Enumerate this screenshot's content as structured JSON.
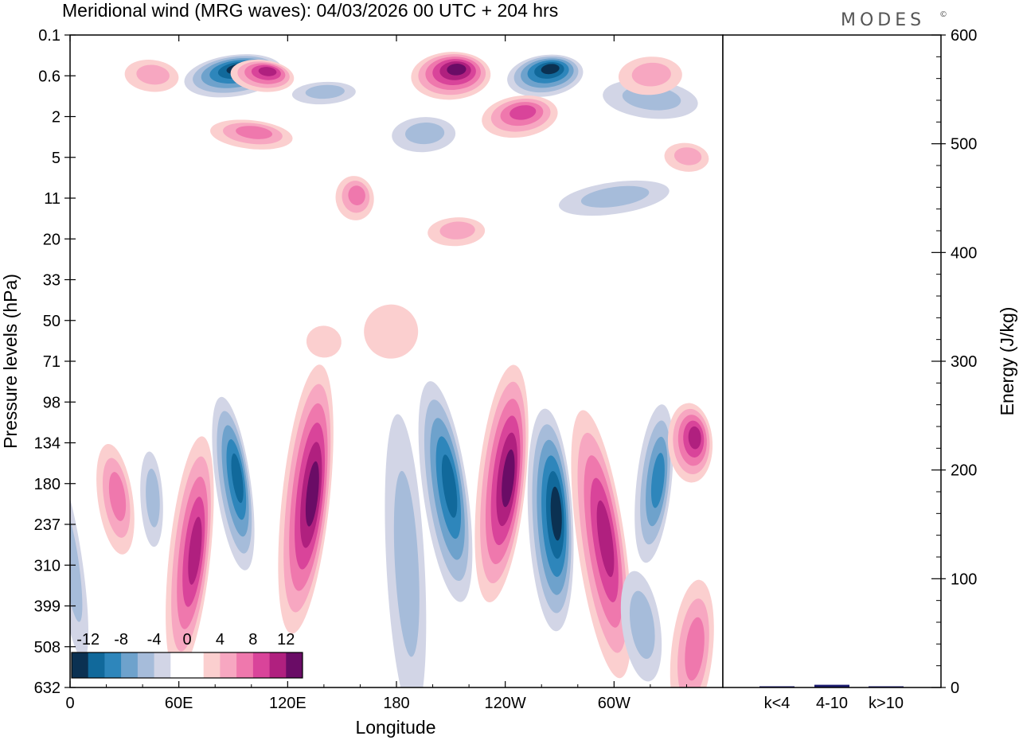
{
  "title": "Meridional wind (MRG waves):  04/03/2026  00 UTC  + 204 hrs",
  "brand": "MODES",
  "brand_mark": "©",
  "colors": {
    "neg": [
      "#0b3152",
      "#11699b",
      "#2e86bb",
      "#6ea2cc",
      "#a6bcda",
      "#d2d5e6"
    ],
    "pos": [
      "#fbcfcf",
      "#f7a7c1",
      "#ef78ad",
      "#d9449a",
      "#b0207f",
      "#6a0c66"
    ],
    "zero": "#ffffff",
    "bar": "#1a1a6e"
  },
  "chart_data": [
    {
      "type": "heatmap",
      "subtype": "filled-contour longitude-pressure cross section",
      "variable": "Meridional wind (MRG waves)",
      "xlabel": "Longitude",
      "ylabel": "Pressure levels (hPa)",
      "x_ticks": [
        "0",
        "60E",
        "120E",
        "180",
        "120W",
        "60W"
      ],
      "x_tick_degrees": [
        0,
        60,
        120,
        180,
        240,
        300
      ],
      "xlim": [
        0,
        360
      ],
      "y_levels": [
        "0.1",
        "0.6",
        "2",
        "5",
        "11",
        "20",
        "33",
        "50",
        "71",
        "98",
        "134",
        "180",
        "237",
        "310",
        "399",
        "508",
        "632"
      ],
      "levels": [
        -14,
        -12,
        -10,
        -8,
        -6,
        -4,
        -2,
        2,
        4,
        6,
        8,
        10,
        12,
        14
      ],
      "colorbar_labels": [
        "-12",
        "-8",
        "-4",
        "0",
        "4",
        "8",
        "12"
      ],
      "features": [
        {
          "lon": 90,
          "level": 0.6,
          "value": -13
        },
        {
          "lon": 106,
          "level": 0.6,
          "value": 10
        },
        {
          "lon": 210,
          "level": 0.6,
          "value": 14
        },
        {
          "lon": 262,
          "level": 0.6,
          "value": -12
        },
        {
          "lon": 45,
          "level": 0.6,
          "value": 5
        },
        {
          "lon": 140,
          "level": 1.0,
          "value": -5
        },
        {
          "lon": 248,
          "level": 2,
          "value": 9
        },
        {
          "lon": 100,
          "level": 3,
          "value": 6
        },
        {
          "lon": 195,
          "level": 3,
          "value": -4
        },
        {
          "lon": 157,
          "level": 11,
          "value": 7
        },
        {
          "lon": 320,
          "level": 1.2,
          "value": -5
        },
        {
          "lon": 320,
          "level": 0.6,
          "value": 5
        },
        {
          "lon": 300,
          "level": 11,
          "value": -4
        },
        {
          "lon": 340,
          "level": 5,
          "value": 4
        },
        {
          "lon": 213,
          "level": 18,
          "value": 4
        },
        {
          "lon": 25,
          "level": 200,
          "value": 7
        },
        {
          "lon": 66,
          "level": 290,
          "value": 10
        },
        {
          "lon": 45,
          "level": 200,
          "value": -5
        },
        {
          "lon": 90,
          "level": 180,
          "value": -10
        },
        {
          "lon": 130,
          "level": 200,
          "value": 13
        },
        {
          "lon": 185,
          "level": 310,
          "value": -4
        },
        {
          "lon": 207,
          "level": 190,
          "value": -11
        },
        {
          "lon": 238,
          "level": 180,
          "value": 12
        },
        {
          "lon": 265,
          "level": 230,
          "value": -13
        },
        {
          "lon": 293,
          "level": 270,
          "value": 11
        },
        {
          "lon": 322,
          "level": 180,
          "value": -9
        },
        {
          "lon": 342,
          "level": 134,
          "value": 11
        },
        {
          "lon": 315,
          "level": 450,
          "value": -5
        },
        {
          "lon": 343,
          "level": 520,
          "value": 7
        },
        {
          "lon": 177,
          "level": 55,
          "value": 3
        },
        {
          "lon": 0,
          "level": 310,
          "value": -5
        },
        {
          "lon": 140,
          "level": 60,
          "value": 3
        }
      ]
    },
    {
      "type": "bar",
      "categories": [
        "k<4",
        "4-10",
        "k>10"
      ],
      "values": [
        0.5,
        2.5,
        0.3
      ],
      "ylabel": "Energy (J/kg)",
      "ylim": [
        0,
        600
      ],
      "y_ticks": [
        "0",
        "100",
        "200",
        "300",
        "400",
        "500",
        "600"
      ]
    }
  ]
}
